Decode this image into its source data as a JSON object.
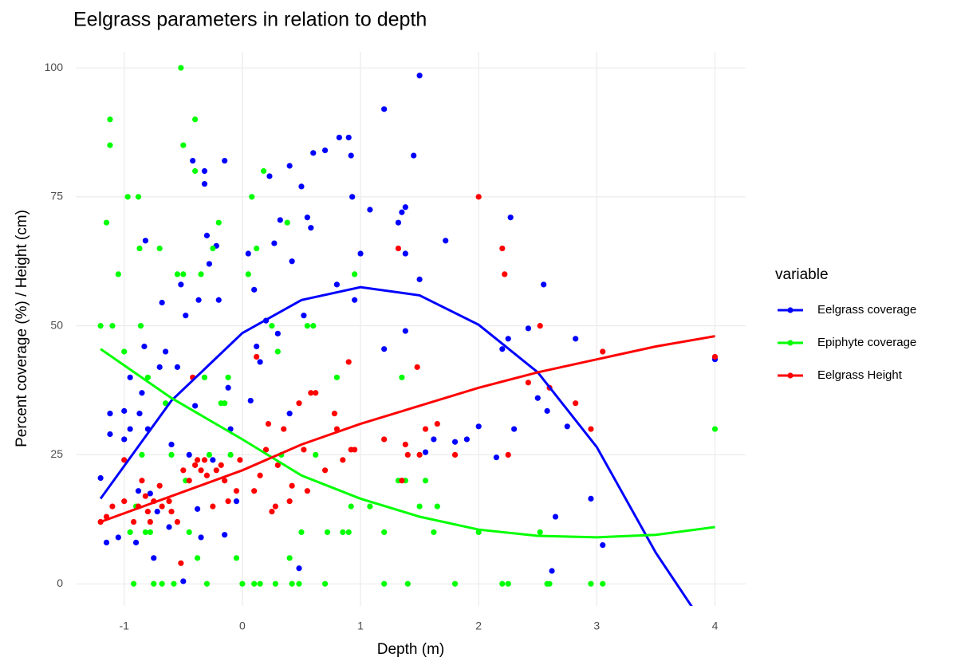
{
  "chart_data": {
    "type": "scatter",
    "title": "Eelgrass parameters in relation to depth",
    "x_label": "Depth (m)",
    "y_label": "Percent coverage (%) / Height (cm)",
    "legend_title": "variable",
    "legend_position": "right",
    "grid": true,
    "xlim": [
      -1.41,
      4.26
    ],
    "ylim": [
      -4.3,
      103.1
    ],
    "xticks": [
      -1,
      0,
      1,
      2,
      3,
      4
    ],
    "yticks": [
      0,
      25,
      50,
      75,
      100
    ],
    "series": [
      {
        "name": "Eelgrass coverage",
        "color": "#0000ff",
        "x": [
          -1.2,
          -1.15,
          -1.12,
          -1.12,
          -1.05,
          -1,
          -1,
          -0.95,
          -0.95,
          -0.9,
          -0.88,
          -0.87,
          -0.85,
          -0.83,
          -0.82,
          -0.8,
          -0.78,
          -0.75,
          -0.72,
          -0.7,
          -0.68,
          -0.65,
          -0.62,
          -0.6,
          -0.55,
          -0.52,
          -0.5,
          -0.48,
          -0.45,
          -0.42,
          -0.4,
          -0.38,
          -0.37,
          -0.35,
          -0.32,
          -0.32,
          -0.3,
          -0.28,
          -0.25,
          -0.22,
          -0.2,
          -0.15,
          -0.15,
          -0.12,
          -0.1,
          -0.05,
          0.05,
          0.07,
          0.1,
          0.12,
          0.15,
          0.2,
          0.23,
          0.27,
          0.32,
          0.3,
          0.4,
          0.42,
          0.4,
          0.48,
          0.5,
          0.52,
          0.55,
          0.58,
          0.6,
          0.7,
          0.8,
          0.82,
          0.9,
          0.92,
          0.93,
          0.95,
          1,
          1.08,
          1.2,
          1.2,
          1.32,
          1.35,
          1.38,
          1.38,
          1.38,
          1.45,
          1.5,
          1.5,
          1.55,
          1.62,
          1.72,
          1.8,
          1.9,
          2,
          2.15,
          2.2,
          2.25,
          2.27,
          2.3,
          2.42,
          2.5,
          2.55,
          2.58,
          2.62,
          2.65,
          2.75,
          2.82,
          2.95,
          3.05,
          4
        ],
        "values": [
          20.5,
          8,
          29,
          33,
          9,
          33.5,
          28,
          40,
          30,
          8,
          18,
          33,
          37,
          46,
          66.5,
          30,
          17.5,
          5,
          14,
          42,
          54.5,
          45,
          11,
          27,
          42,
          58,
          0.5,
          52,
          25,
          82,
          34.5,
          14.5,
          55,
          9,
          80,
          77.5,
          67.5,
          62,
          24,
          65.5,
          55,
          9.5,
          82,
          38,
          30,
          16,
          64,
          35.5,
          57,
          46,
          43,
          51,
          79,
          66,
          70.5,
          48.5,
          81,
          62.5,
          33,
          3,
          77,
          52,
          71,
          69,
          83.5,
          84,
          58,
          86.5,
          86.5,
          83,
          75,
          55,
          64,
          72.5,
          92,
          45.5,
          70,
          72,
          73,
          64,
          49,
          83,
          98.5,
          59,
          25.5,
          28,
          66.5,
          27.5,
          28,
          30.5,
          24.5,
          45.5,
          47.5,
          71,
          30,
          49.5,
          36,
          58,
          33.5,
          2.5,
          13,
          30.5,
          47.5,
          16.5,
          7.5,
          43.5
        ],
        "fit_x": [
          -1.2,
          -0.6,
          0,
          0.5,
          1,
          1.5,
          2,
          2.5,
          3,
          3.5,
          3.85
        ],
        "fit_values": [
          16.5,
          35.5,
          48.6,
          55,
          57.5,
          55.9,
          50.2,
          41,
          26.5,
          6,
          -6
        ]
      },
      {
        "name": "Epiphyte coverage",
        "color": "#00ff00",
        "x": [
          -1.2,
          -1.15,
          -1.12,
          -1.12,
          -1.1,
          -1.05,
          -1,
          -0.97,
          -0.95,
          -0.92,
          -0.9,
          -0.88,
          -0.87,
          -0.86,
          -0.85,
          -0.82,
          -0.8,
          -0.78,
          -0.75,
          -0.7,
          -0.68,
          -0.65,
          -0.6,
          -0.58,
          -0.55,
          -0.52,
          -0.5,
          -0.5,
          -0.48,
          -0.45,
          -0.4,
          -0.4,
          -0.38,
          -0.35,
          -0.32,
          -0.3,
          -0.28,
          -0.25,
          -0.2,
          -0.18,
          -0.15,
          -0.12,
          -0.1,
          -0.05,
          0,
          0.05,
          0.08,
          0.1,
          0.12,
          0.15,
          0.18,
          0.25,
          0.28,
          0.3,
          0.33,
          0.38,
          0.4,
          0.42,
          0.48,
          0.5,
          0.55,
          0.6,
          0.62,
          0.7,
          0.72,
          0.8,
          0.85,
          0.9,
          0.92,
          0.95,
          1.08,
          1.2,
          1.2,
          1.32,
          1.35,
          1.38,
          1.4,
          1.5,
          1.55,
          1.62,
          1.65,
          1.8,
          2,
          2.2,
          2.25,
          2.52,
          2.58,
          2.6,
          2.95,
          3.05,
          4
        ],
        "values": [
          50,
          70,
          90,
          85,
          50,
          60,
          45,
          75,
          10,
          0,
          15,
          75,
          65,
          50,
          25,
          10,
          40,
          10,
          0,
          65,
          0,
          35,
          25,
          0,
          60,
          100,
          85,
          60,
          20,
          10,
          90,
          80,
          5,
          60,
          40,
          0,
          25,
          65,
          70,
          35,
          35,
          40,
          25,
          5,
          0,
          60,
          75,
          0,
          65,
          0,
          80,
          50,
          0,
          45,
          25,
          70,
          5,
          0,
          0,
          10,
          50,
          50,
          25,
          0,
          10,
          40,
          10,
          10,
          15,
          60,
          15,
          10,
          0,
          20,
          40,
          20,
          0,
          15,
          20,
          10,
          15,
          0,
          10,
          0,
          0,
          10,
          0,
          0,
          0,
          0,
          30
        ],
        "fit_x": [
          -1.2,
          -0.6,
          0,
          0.5,
          1,
          1.5,
          2,
          2.5,
          3,
          3.5,
          4
        ],
        "fit_values": [
          45.5,
          36,
          28,
          21,
          16.5,
          13,
          10.5,
          9.3,
          9,
          9.5,
          11
        ]
      },
      {
        "name": "Eelgrass Height",
        "color": "#ff0000",
        "x": [
          -1.2,
          -1.15,
          -1.1,
          -1,
          -1,
          -0.92,
          -0.88,
          -0.85,
          -0.82,
          -0.8,
          -0.78,
          -0.75,
          -0.7,
          -0.68,
          -0.62,
          -0.6,
          -0.55,
          -0.52,
          -0.5,
          -0.45,
          -0.42,
          -0.4,
          -0.38,
          -0.35,
          -0.32,
          -0.3,
          -0.25,
          -0.22,
          -0.18,
          -0.15,
          -0.12,
          -0.05,
          -0.02,
          0.1,
          0.12,
          0.15,
          0.2,
          0.22,
          0.25,
          0.28,
          0.3,
          0.35,
          0.4,
          0.42,
          0.48,
          0.52,
          0.55,
          0.58,
          0.62,
          0.7,
          0.78,
          0.8,
          0.85,
          0.9,
          0.92,
          0.95,
          1.2,
          1.32,
          1.35,
          1.38,
          1.4,
          1.48,
          1.5,
          1.55,
          1.65,
          1.8,
          2,
          2.2,
          2.22,
          2.25,
          2.42,
          2.52,
          2.6,
          2.82,
          2.95,
          3.05,
          4
        ],
        "values": [
          12,
          13,
          15,
          16,
          24,
          12,
          15,
          20,
          17,
          14,
          12,
          16,
          19,
          15,
          16,
          14,
          12,
          4,
          22,
          20,
          40,
          23,
          24,
          22,
          24,
          21,
          15,
          22,
          23,
          20,
          16,
          18,
          24,
          18,
          44,
          21,
          26,
          31,
          14,
          15,
          23,
          30,
          16,
          19,
          35,
          26,
          18,
          37,
          37,
          22,
          33,
          30,
          24,
          43,
          26,
          26,
          28,
          65,
          20,
          27,
          25,
          42,
          25,
          30,
          31,
          25,
          75,
          65,
          60,
          25,
          39,
          50,
          38,
          35,
          30,
          45,
          44
        ],
        "fit_x": [
          -1.2,
          -0.6,
          0,
          0.5,
          1,
          1.5,
          2,
          2.5,
          3,
          3.5,
          4
        ],
        "fit_values": [
          12,
          17,
          22,
          27,
          31,
          34.5,
          38,
          41,
          43.5,
          46,
          48
        ]
      }
    ]
  }
}
